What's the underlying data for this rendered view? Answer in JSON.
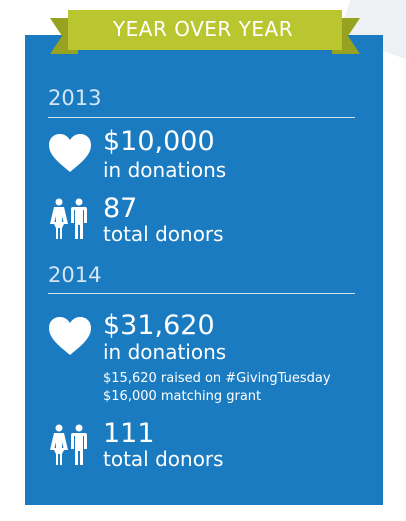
{
  "header": {
    "title": "YEAR OVER YEAR"
  },
  "sections": [
    {
      "year": "2013",
      "stats": [
        {
          "value": "$10,000",
          "label": "in donations"
        },
        {
          "value": "87",
          "label": "total donors"
        }
      ]
    },
    {
      "year": "2014",
      "stats": [
        {
          "value": "$31,620",
          "label": "in donations",
          "notes": [
            "$15,620 raised on #GivingTuesday",
            "$16,000 matching grant"
          ]
        },
        {
          "value": "111",
          "label": "total donors"
        }
      ]
    }
  ]
}
